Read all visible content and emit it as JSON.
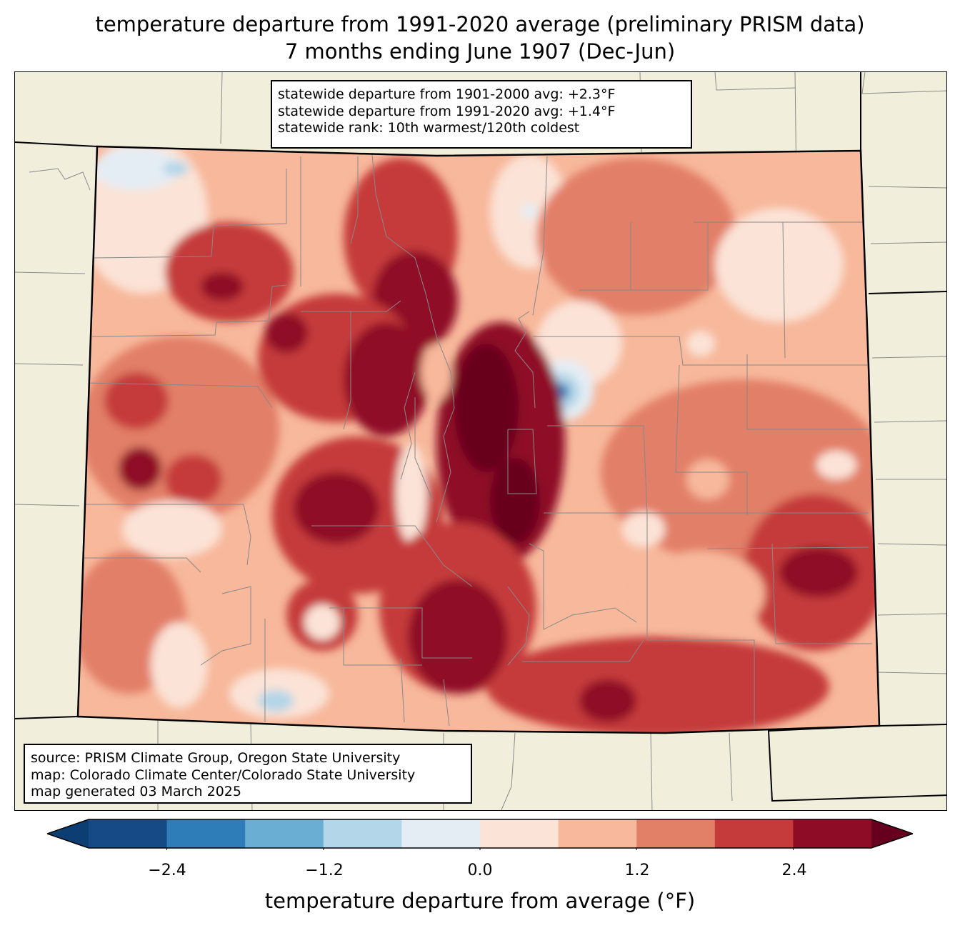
{
  "title": {
    "line1": "temperature departure from 1991-2020 average (preliminary PRISM data)",
    "line2": "7 months ending June 1907 (Dec-Jun)"
  },
  "stats": {
    "line1": "statewide departure from 1901-2000 avg: +2.3°F",
    "line2": "statewide departure from 1991-2020 avg: +1.4°F",
    "line3": "statewide rank: 10th warmest/120th coldest"
  },
  "source": {
    "line1": "source: PRISM Climate Group, Oregon State University",
    "line2": "map: Colorado Climate Center/Colorado State University",
    "line3": "map generated 03 March 2025"
  },
  "colorbar": {
    "label": "temperature departure from average (°F)",
    "ticks": [
      "−2.4",
      "−1.2",
      "0.0",
      "1.2",
      "2.4"
    ],
    "tick_values": [
      -2.4,
      -1.2,
      0.0,
      1.2,
      2.4
    ],
    "levels": [
      -3.0,
      -2.4,
      -1.8,
      -1.2,
      -0.6,
      0.0,
      0.6,
      1.2,
      1.8,
      2.4,
      3.0
    ],
    "colors": [
      "#0d3e73",
      "#154a87",
      "#2f7db8",
      "#6aafd3",
      "#b3d6e8",
      "#e4edf4",
      "#fbe3d7",
      "#f7b89b",
      "#e27f67",
      "#c53b3b",
      "#8f0c26",
      "#67001f"
    ]
  },
  "regions": {
    "base": "#f7b89b",
    "land": "#f1efdc",
    "border": "#000000",
    "county_line": "#888888"
  }
}
